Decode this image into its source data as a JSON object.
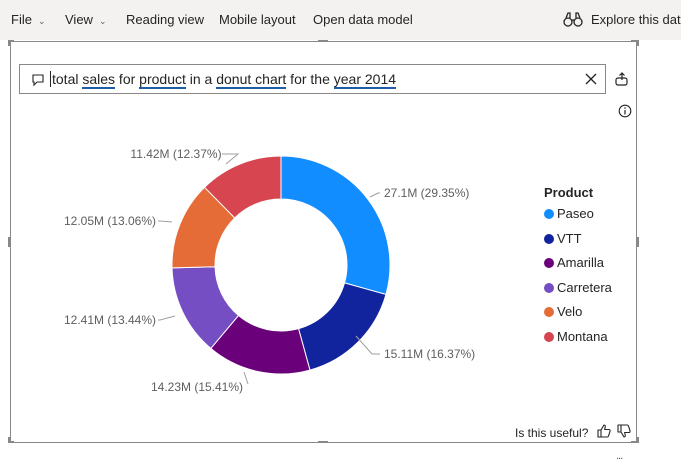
{
  "menu": {
    "items": [
      {
        "label": "File",
        "dropdown": true
      },
      {
        "label": "View",
        "dropdown": true
      },
      {
        "label": "Reading view",
        "dropdown": false
      },
      {
        "label": "Mobile layout",
        "dropdown": false
      },
      {
        "label": "Open data model",
        "dropdown": false
      }
    ],
    "explore_label": "Explore this data"
  },
  "qa": {
    "query_segments": [
      {
        "text": "total ",
        "term": false
      },
      {
        "text": "sales",
        "term": true
      },
      {
        "text": " for ",
        "term": false
      },
      {
        "text": "product",
        "term": true
      },
      {
        "text": " in a ",
        "term": false
      },
      {
        "text": "donut chart",
        "term": true
      },
      {
        "text": " for the ",
        "term": false
      },
      {
        "text": "year 2014",
        "term": true
      }
    ]
  },
  "chart_data": {
    "type": "pie",
    "donut": true,
    "legend_title": "Product",
    "legend_position": "right",
    "slices": [
      {
        "name": "Paseo",
        "value": 27.1,
        "label": "27.1M (29.35%)",
        "color": "#118dff"
      },
      {
        "name": "VTT",
        "value": 15.11,
        "label": "15.11M (16.37%)",
        "color": "#12239e"
      },
      {
        "name": "Amarilla",
        "value": 14.23,
        "label": "14.23M (15.41%)",
        "color": "#6b007b"
      },
      {
        "name": "Carretera",
        "value": 12.41,
        "label": "12.41M (13.44%)",
        "color": "#744ec2"
      },
      {
        "name": "Velo",
        "value": 12.05,
        "label": "12.05M (13.06%)",
        "color": "#e66c37"
      },
      {
        "name": "Montana",
        "value": 11.42,
        "label": "11.42M (12.37%)",
        "color": "#d64550"
      }
    ]
  },
  "footer": {
    "useful_label": "Is this useful?",
    "more": "..."
  },
  "colors": {
    "term_underline": "#1e5ca8",
    "border": "#8a8886",
    "menubar_bg": "#f3f2f1"
  }
}
